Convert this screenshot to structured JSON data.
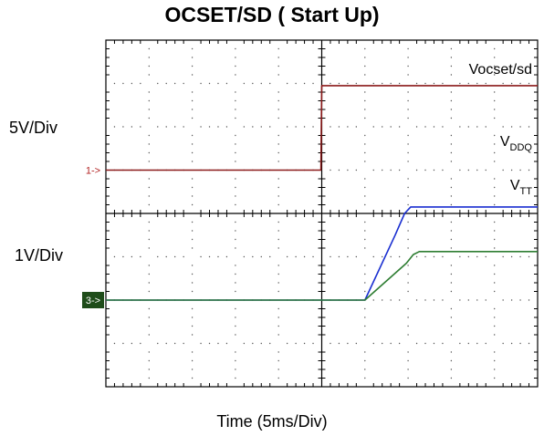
{
  "chart_data": {
    "type": "line",
    "title": "OCSET/SD ( Start Up)",
    "xlabel": "Time  (5ms/Div)",
    "ylabel_upper": "5V/Div",
    "ylabel_lower": "1V/Div",
    "x_unit": "ms",
    "x_per_div": 5,
    "xlim": [
      0,
      50
    ],
    "grid": true,
    "channel_markers": [
      {
        "label": "1->",
        "color": "#b22222",
        "ref_div": 3.0,
        "filled": false
      },
      {
        "label": "3->",
        "color": "#ffffff",
        "bg": "#1f4d1a",
        "ref_div": 6.0,
        "filled": true
      }
    ],
    "series": [
      {
        "name": "Vocset/sd",
        "label_main": "Vocset/sd",
        "label_sub": "",
        "color": "#8b1a1a",
        "points": [
          [
            0,
            3.0
          ],
          [
            24.9,
            3.0
          ],
          [
            25.0,
            1.05
          ],
          [
            50,
            1.05
          ]
        ]
      },
      {
        "name": "VDDQ",
        "label_main": "V",
        "label_sub": "DDQ",
        "color": "#1a2fd1",
        "points": [
          [
            0,
            6.0
          ],
          [
            30.0,
            6.0
          ],
          [
            33.5,
            4.5
          ],
          [
            34.6,
            4.0
          ],
          [
            35.3,
            3.85
          ],
          [
            50,
            3.85
          ]
        ]
      },
      {
        "name": "VTT",
        "label_main": "V",
        "label_sub": "TT",
        "color": "#2e7d32",
        "points": [
          [
            0,
            6.0
          ],
          [
            30.0,
            6.0
          ],
          [
            34.8,
            5.15
          ],
          [
            35.6,
            4.95
          ],
          [
            36.3,
            4.88
          ],
          [
            50,
            4.88
          ]
        ]
      }
    ]
  }
}
